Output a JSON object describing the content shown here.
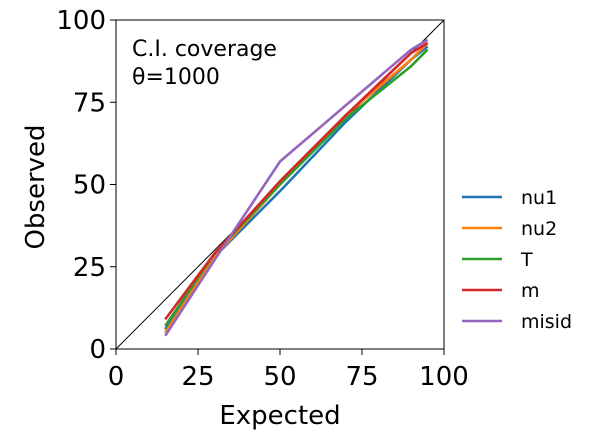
{
  "chart_data": {
    "type": "line",
    "annotation": [
      "C.I. coverage",
      "θ=1000"
    ],
    "xlabel": "Expected",
    "ylabel": "Observed",
    "xlim": [
      0,
      100
    ],
    "ylim": [
      0,
      100
    ],
    "xticks": [
      0,
      25,
      50,
      75,
      100
    ],
    "yticks": [
      0,
      25,
      50,
      75,
      100
    ],
    "grid": false,
    "legend_position": "outside-right",
    "reference_line": {
      "from": [
        0,
        0
      ],
      "to": [
        100,
        100
      ],
      "color": "#000000"
    },
    "x": [
      15,
      30,
      50,
      70,
      90,
      95
    ],
    "series": [
      {
        "name": "nu1",
        "color": "#1f77b4",
        "values": [
          6,
          28,
          48,
          69,
          88,
          92
        ]
      },
      {
        "name": "nu2",
        "color": "#ff7f0e",
        "values": [
          5,
          28,
          50,
          71,
          88,
          93
        ]
      },
      {
        "name": "T",
        "color": "#2ca02c",
        "values": [
          7,
          29,
          50,
          70,
          86,
          91
        ]
      },
      {
        "name": "m",
        "color": "#d62728",
        "values": [
          9,
          29,
          51,
          71,
          90,
          93
        ]
      },
      {
        "name": "misid",
        "color": "#9467bd",
        "values": [
          4,
          27,
          57,
          74,
          91,
          94
        ]
      }
    ]
  }
}
